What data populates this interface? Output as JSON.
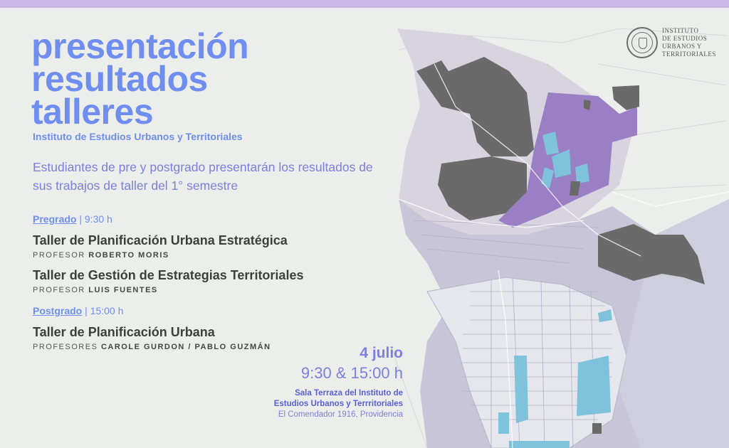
{
  "title": {
    "line1": "presentación",
    "line2": "resultados",
    "line3": "talleres"
  },
  "subtitle": "Instituto de Estudios Urbanos y Territoriales",
  "intro": "Estudiantes de pre y postgrado presentarán los resultados de sus trabajos de taller del 1° semestre",
  "pregrado": {
    "label": "Pregrado",
    "time": "9:30 h",
    "courses": [
      {
        "name": "Taller de Planificación Urbana Estratégica",
        "prof_prefix": "Profesor",
        "prof_name": "Roberto Moris"
      },
      {
        "name": "Taller de Gestión de Estrategias Territoriales",
        "prof_prefix": "Profesor",
        "prof_name": "Luis Fuentes"
      }
    ]
  },
  "postgrado": {
    "label": "Postgrado",
    "time": "15:00 h",
    "courses": [
      {
        "name": "Taller de Planificación Urbana",
        "prof_prefix": "Profesores",
        "prof_name": "Carole Gurdon / Pablo Guzmán"
      }
    ]
  },
  "event": {
    "date": "4 julio",
    "time": "9:30 & 15:00 h",
    "venue_line1": "Sala Terraza del Instituto de",
    "venue_line2": "Estudios Urbanos y Terrritoriales",
    "address": "El Comendador 1916, Providencia"
  },
  "logo": {
    "line1": "INSTITUTO",
    "line2": "DE ESTUDIOS",
    "line3": "URBANOS Y",
    "line4": "TERRITORIALES"
  },
  "colors": {
    "accent_blue": "#6f8ef0",
    "accent_violet": "#7d7fdb",
    "map_purple": "#9a7fc4",
    "map_cyan": "#7ec2dc",
    "map_dark": "#6a6a6a",
    "top_bar": "#c9b8e6"
  }
}
